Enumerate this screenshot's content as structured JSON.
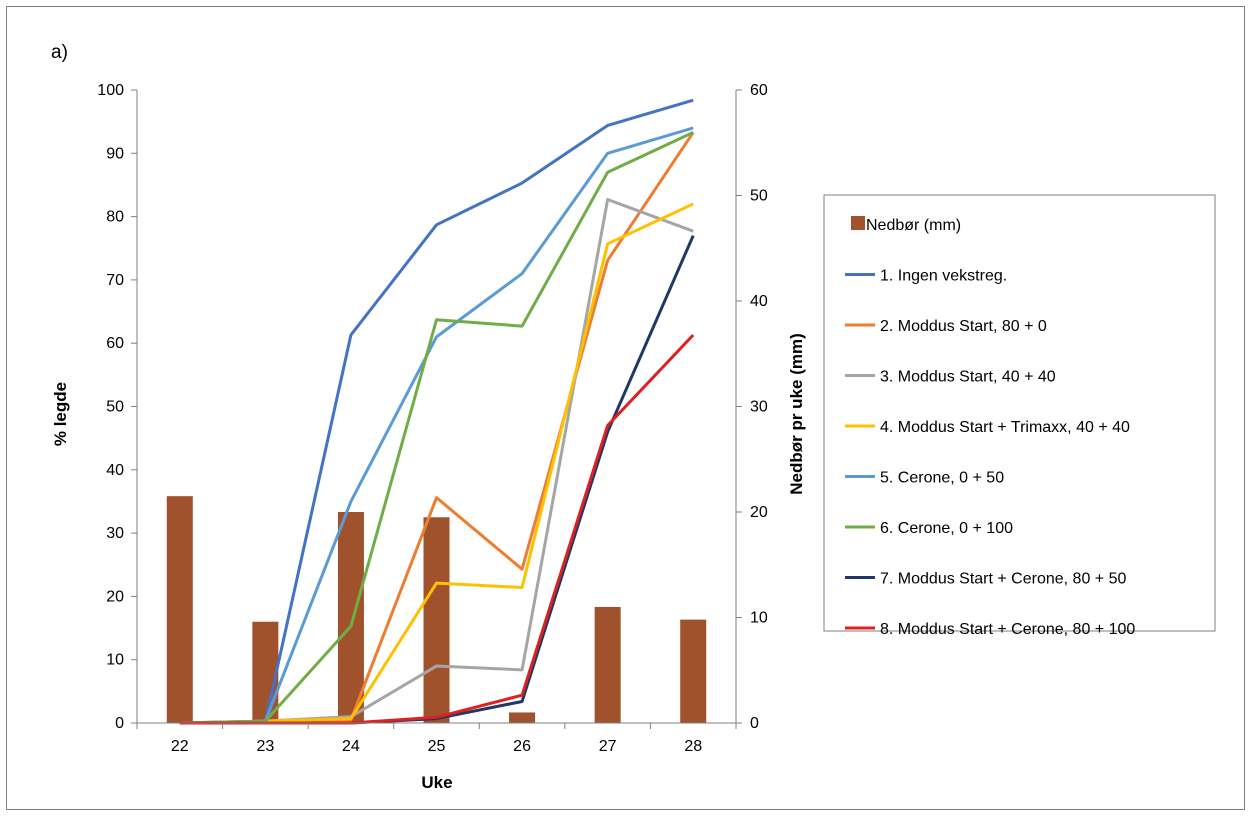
{
  "panel_label": "a)",
  "chart_data": {
    "type": "bar+line",
    "xlabel": "Uke",
    "ylabel_left": "% legde",
    "ylabel_right": "Nedbør pr uke (mm)",
    "categories": [
      "22",
      "23",
      "24",
      "25",
      "26",
      "27",
      "28"
    ],
    "ylim_left": [
      0,
      100
    ],
    "yticks_left": [
      0,
      10,
      20,
      30,
      40,
      50,
      60,
      70,
      80,
      90,
      100
    ],
    "ylim_right": [
      0,
      60
    ],
    "yticks_right": [
      0,
      10,
      20,
      30,
      40,
      50,
      60
    ],
    "grid": false,
    "legend_position": "right",
    "bars": {
      "name": "Nedbør (mm)",
      "axis": "right",
      "color": "#A0522D",
      "values": [
        21.5,
        9.6,
        20.0,
        19.5,
        1.0,
        11.0,
        9.8
      ]
    },
    "series": [
      {
        "name": "1. Ingen vekstreg.",
        "color": "#4472C4",
        "values": [
          0,
          0.2,
          61.3,
          78.7,
          85.3,
          94.4,
          98.4
        ]
      },
      {
        "name": "2. Moddus Start, 80 + 0",
        "color": "#ED7D31",
        "values": [
          0,
          0,
          0.5,
          35.6,
          24.3,
          73.1,
          93.3
        ]
      },
      {
        "name": "3. Moddus Start, 40 + 40",
        "color": "#A5A5A5",
        "values": [
          0,
          0.3,
          1.0,
          9.0,
          8.4,
          82.7,
          77.7
        ]
      },
      {
        "name": "4. Moddus Start + Trimaxx, 40 + 40",
        "color": "#FFC000",
        "values": [
          0,
          0.3,
          0.7,
          22.1,
          21.4,
          75.7,
          82.0
        ]
      },
      {
        "name": "5. Cerone, 0 + 50",
        "color": "#5B9BD5",
        "values": [
          0,
          0.3,
          35.0,
          61.0,
          71.0,
          90.0,
          94.0
        ]
      },
      {
        "name": "6. Cerone, 0 + 100",
        "color": "#70AD47",
        "values": [
          0,
          0.3,
          15.3,
          63.7,
          62.7,
          87.0,
          93.3
        ]
      },
      {
        "name": "7. Moddus Start + Cerone, 80 + 50",
        "color": "#203864",
        "values": [
          0,
          0,
          0,
          0.7,
          3.4,
          46.0,
          77.0
        ]
      },
      {
        "name": "8. Moddus Start + Cerone, 80 + 100",
        "color": "#E02020",
        "values": [
          0,
          0,
          0,
          0.9,
          4.4,
          47.0,
          61.3
        ]
      }
    ]
  }
}
